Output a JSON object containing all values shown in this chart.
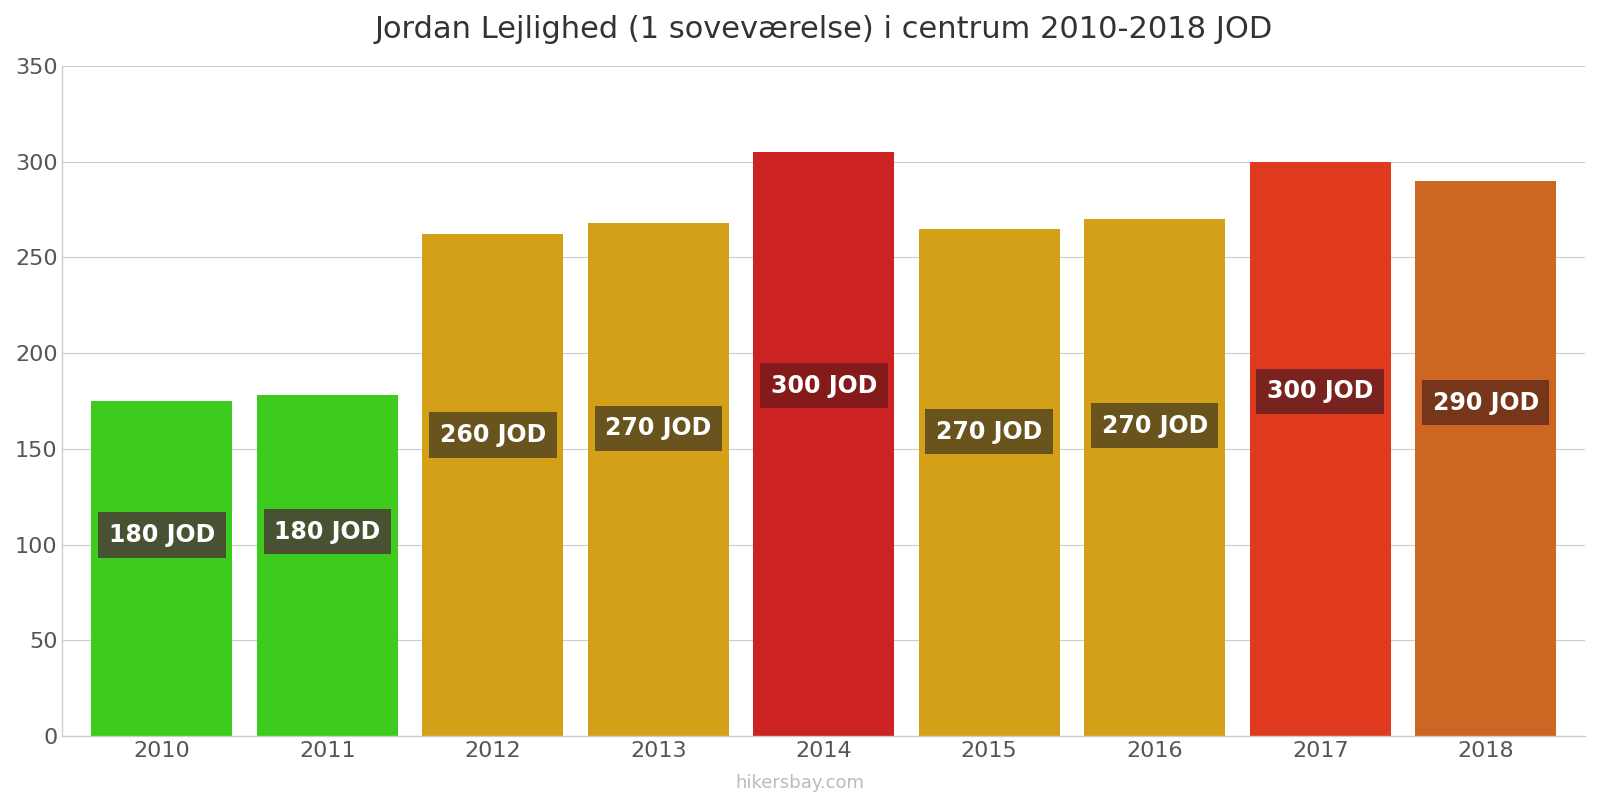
{
  "years": [
    2010,
    2011,
    2012,
    2013,
    2014,
    2015,
    2016,
    2017,
    2018
  ],
  "values": [
    175,
    178,
    262,
    268,
    305,
    265,
    270,
    300,
    290
  ],
  "bar_colors": [
    "#3dcc1e",
    "#3dcc1e",
    "#d4a017",
    "#d4a017",
    "#cc2222",
    "#d4a017",
    "#d4a017",
    "#e03a1e",
    "#cc6622"
  ],
  "label_values": [
    180,
    180,
    260,
    270,
    300,
    270,
    270,
    300,
    290
  ],
  "label_bg_colors": [
    "#4a4035",
    "#4a4035",
    "#5a4a20",
    "#5a4a20",
    "#7a1a1a",
    "#5a4a20",
    "#5a4a20",
    "#6a2020",
    "#6a3018"
  ],
  "title": "Jordan Lejlighed (1 soveværelse) i centrum 2010-2018 JOD",
  "ylim": [
    0,
    350
  ],
  "yticks": [
    0,
    50,
    100,
    150,
    200,
    250,
    300,
    350
  ],
  "watermark": "hikersbay.com",
  "background_color": "#ffffff",
  "title_fontsize": 22,
  "label_fontsize": 17,
  "bar_width": 0.85
}
